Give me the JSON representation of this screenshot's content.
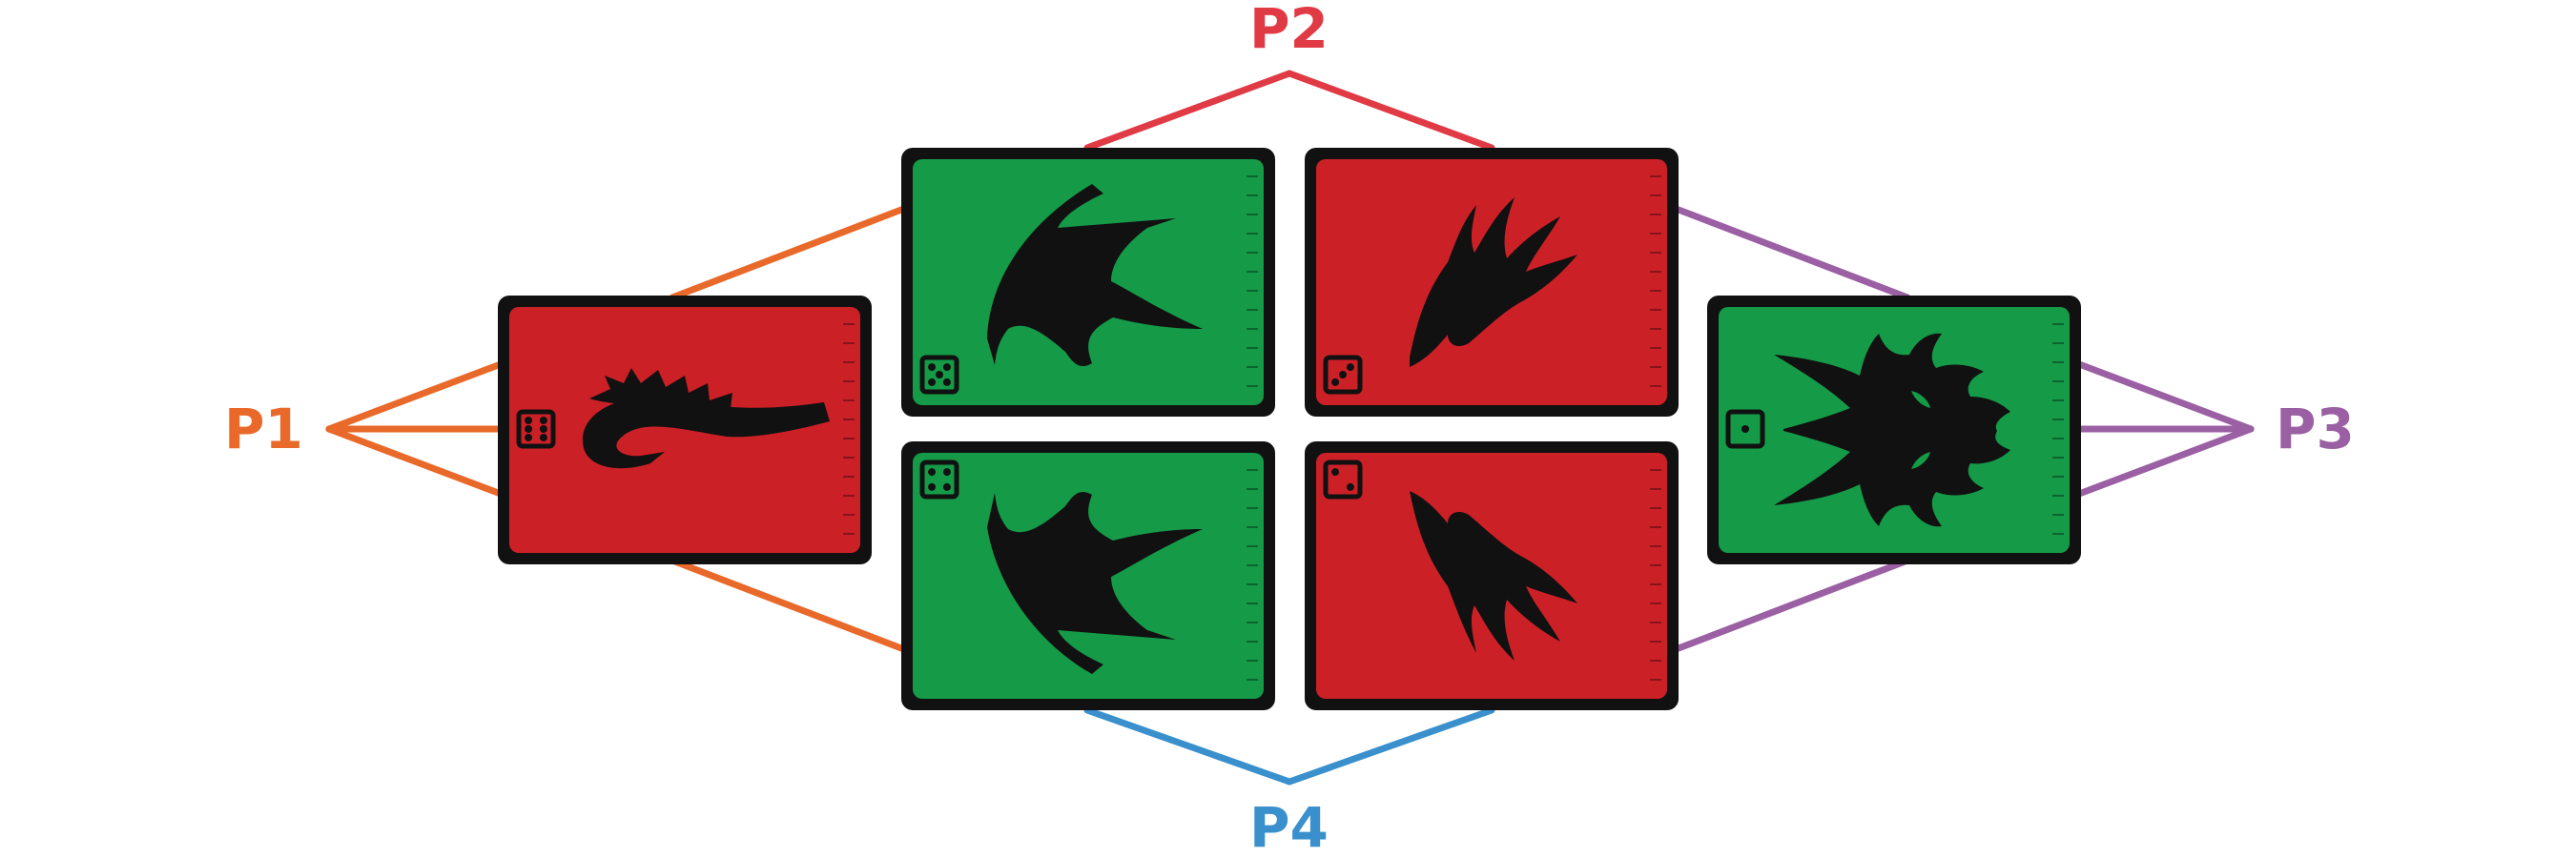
{
  "players": [
    {
      "id": "p1",
      "label": "P1",
      "color": "#E8692A"
    },
    {
      "id": "p2",
      "label": "P2",
      "color": "#E03A45"
    },
    {
      "id": "p3",
      "label": "P3",
      "color": "#9B5FA3"
    },
    {
      "id": "p4",
      "label": "P4",
      "color": "#3A90CC"
    }
  ],
  "cards": [
    {
      "id": "p1-card",
      "color": "#CC2027",
      "die_value": 6,
      "creature": "tail-icon"
    },
    {
      "id": "top-left",
      "color": "#159A48",
      "die_value": 5,
      "creature": "wing-icon"
    },
    {
      "id": "top-right",
      "color": "#CC2027",
      "die_value": 3,
      "creature": "claw-icon"
    },
    {
      "id": "bottom-left",
      "color": "#159A48",
      "die_value": 4,
      "creature": "wing-icon"
    },
    {
      "id": "bottom-right",
      "color": "#CC2027",
      "die_value": 2,
      "creature": "claw-icon"
    },
    {
      "id": "p3-card",
      "color": "#159A48",
      "die_value": 1,
      "creature": "dragon-head-icon"
    }
  ]
}
